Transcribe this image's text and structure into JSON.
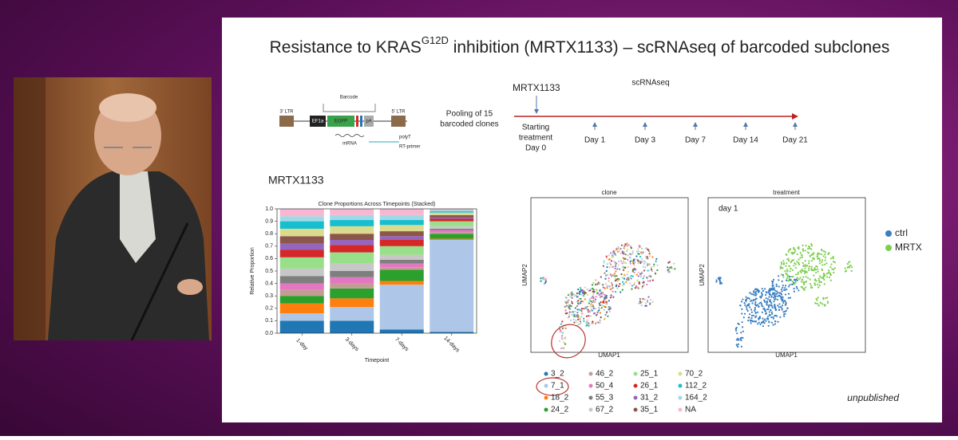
{
  "slide": {
    "title": "Resistance to KRAS",
    "title_sup": "G12D",
    "title_rest": " inhibition (MRTX1133) – scRNAseq of barcoded subclones",
    "construct": {
      "barcode": "Barcode",
      "ltr3": "3' LTR",
      "promoter": "EF1a",
      "gene": "EGFP",
      "pa": "pA",
      "ltr5": "5' LTR",
      "mrna": "mRNA",
      "polyt": "polyT",
      "primer": "RT-primer"
    },
    "pooling": [
      "Pooling of 15",
      "barcoded clones"
    ],
    "timeline": {
      "drug": "MRTX1133",
      "assay": "scRNAseq",
      "start": [
        "Starting",
        "treatment",
        "Day 0"
      ],
      "days": [
        "Day 1",
        "Day 3",
        "Day 7",
        "Day 14",
        "Day 21"
      ]
    },
    "chart_label": "MRTX1133",
    "umap": {
      "panels": [
        "clone",
        "treatment"
      ],
      "xlabel": "UMAP1",
      "ylabel": "UMAP2",
      "annotation": "day 1",
      "treatment_legend": [
        {
          "name": "ctrl",
          "color": "#3a7fc1"
        },
        {
          "name": "MRTX",
          "color": "#7ccf4e"
        }
      ]
    },
    "note": "unpublished"
  },
  "chart_data": {
    "type": "bar",
    "stacked": true,
    "title": "Clone Proportions Across Timepoints (Stacked)",
    "xlabel": "Timepoint",
    "ylabel": "Relative Proportion",
    "categories": [
      "1-day",
      "3-days",
      "7-days",
      "14-days"
    ],
    "ylim": [
      0,
      1
    ],
    "yticks": [
      {
        "value": 0,
        "label": "0.0"
      },
      {
        "value": 0.1,
        "label": "0.1"
      },
      {
        "value": 0.2,
        "label": "0.2"
      },
      {
        "value": 0.3,
        "label": "0.3"
      },
      {
        "value": 0.4,
        "label": "0.4"
      },
      {
        "value": 0.5,
        "label": "0.5"
      },
      {
        "value": 0.6,
        "label": "0.6"
      },
      {
        "value": 0.7,
        "label": "0.7"
      },
      {
        "value": 0.8,
        "label": "0.8"
      },
      {
        "value": 0.9,
        "label": "0.9"
      },
      {
        "value": 1,
        "label": "1.0"
      }
    ],
    "series": [
      {
        "name": "3_2",
        "color": "#1f77b4",
        "values": [
          0.1,
          0.1,
          0.03,
          0.01
        ]
      },
      {
        "name": "7_1",
        "color": "#aec7e8",
        "values": [
          0.06,
          0.11,
          0.36,
          0.74
        ]
      },
      {
        "name": "18_2",
        "color": "#ff7f0e",
        "values": [
          0.08,
          0.07,
          0.03,
          0.01
        ]
      },
      {
        "name": "24_2",
        "color": "#2ca02c",
        "values": [
          0.06,
          0.08,
          0.09,
          0.04
        ]
      },
      {
        "name": "46_2",
        "color": "#c49c94",
        "values": [
          0.05,
          0.04,
          0.02,
          0.01
        ]
      },
      {
        "name": "50_4",
        "color": "#e377c2",
        "values": [
          0.05,
          0.05,
          0.03,
          0.02
        ]
      },
      {
        "name": "55_3",
        "color": "#7f7f7f",
        "values": [
          0.06,
          0.05,
          0.03,
          0.01
        ]
      },
      {
        "name": "67_2",
        "color": "#c7c7c7",
        "values": [
          0.06,
          0.06,
          0.04,
          0.02
        ]
      },
      {
        "name": "25_1",
        "color": "#98df8a",
        "values": [
          0.09,
          0.09,
          0.07,
          0.04
        ]
      },
      {
        "name": "26_1",
        "color": "#d62728",
        "values": [
          0.06,
          0.06,
          0.05,
          0.02
        ]
      },
      {
        "name": "31_2",
        "color": "#9467bd",
        "values": [
          0.05,
          0.04,
          0.03,
          0.01
        ]
      },
      {
        "name": "35_1",
        "color": "#8c564b",
        "values": [
          0.06,
          0.05,
          0.04,
          0.02
        ]
      },
      {
        "name": "70_2",
        "color": "#dbdb8d",
        "values": [
          0.06,
          0.06,
          0.05,
          0.02
        ]
      },
      {
        "name": "112_2",
        "color": "#17becf",
        "values": [
          0.06,
          0.05,
          0.04,
          0.01
        ]
      },
      {
        "name": "164_2",
        "color": "#9edae5",
        "values": [
          0.04,
          0.04,
          0.04,
          0.01
        ]
      },
      {
        "name": "NA",
        "color": "#f7b6d2",
        "values": [
          0.06,
          0.05,
          0.05,
          0.01
        ]
      }
    ],
    "legend_columns": 4
  }
}
